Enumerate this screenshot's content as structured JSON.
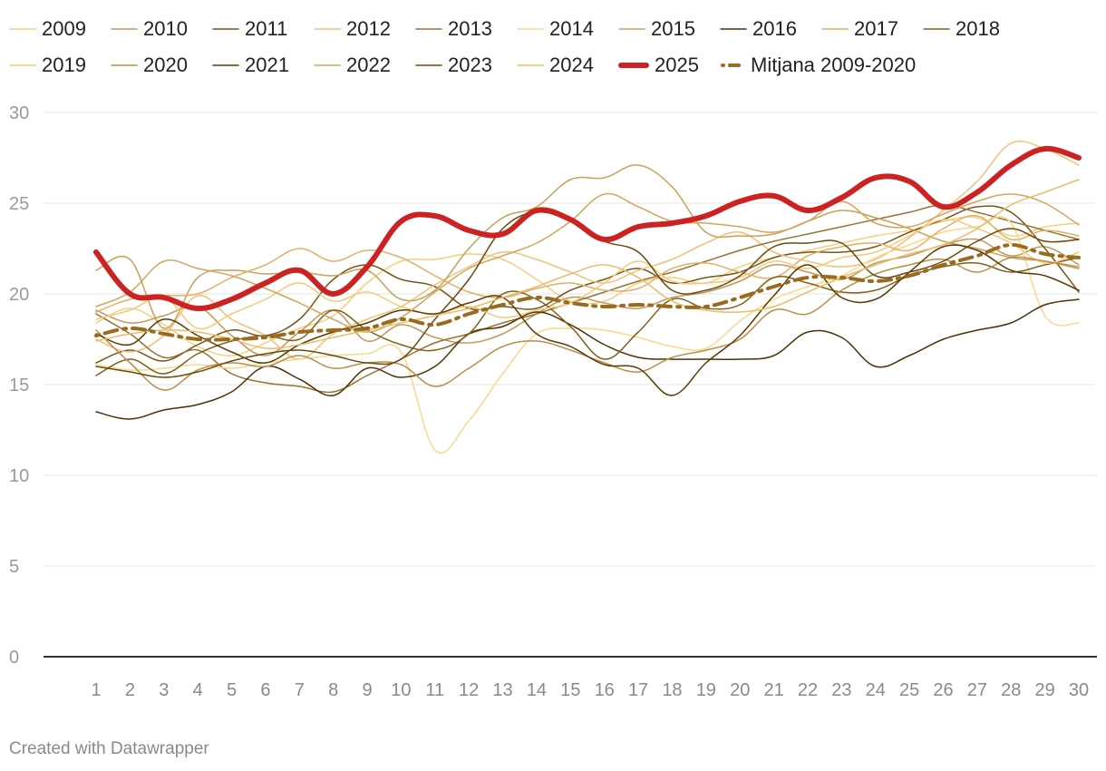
{
  "chart_data": {
    "type": "line",
    "title": "",
    "xlabel": "",
    "ylabel": "",
    "ylim": [
      0,
      30
    ],
    "yticks": [
      0,
      5,
      10,
      15,
      20,
      25,
      30
    ],
    "x": [
      1,
      2,
      3,
      4,
      5,
      6,
      7,
      8,
      9,
      10,
      11,
      12,
      13,
      14,
      15,
      16,
      17,
      18,
      19,
      20,
      21,
      22,
      23,
      24,
      25,
      26,
      27,
      28,
      29,
      30
    ],
    "series": [
      {
        "name": "2009",
        "color": "#f6cf7e",
        "width": 1.5,
        "values": [
          18.4,
          19.2,
          18.3,
          17.1,
          16.6,
          17.3,
          18.1,
          18.8,
          20.6,
          21.8,
          21.9,
          22.2,
          21.9,
          20.8,
          19.6,
          19.6,
          20.6,
          20.9,
          20.6,
          21.5,
          22.0,
          22.4,
          22.8,
          23.2,
          23.5,
          24.0,
          24.2,
          23.2,
          23.7,
          23.9
        ]
      },
      {
        "name": "2010",
        "color": "#c4975a",
        "width": 1.5,
        "values": [
          19.1,
          18.4,
          18.8,
          19.3,
          17.7,
          16.6,
          17.9,
          19.1,
          17.4,
          18.3,
          17.6,
          17.3,
          17.8,
          18.9,
          19.8,
          19.5,
          19.2,
          19.8,
          20.1,
          20.7,
          21.6,
          21.2,
          20.8,
          21.7,
          22.1,
          22.7,
          23.0,
          22.1,
          22.6,
          21.6
        ]
      },
      {
        "name": "2011",
        "color": "#7a5518",
        "width": 1.5,
        "values": [
          16.2,
          16.9,
          16.3,
          17.2,
          18.0,
          17.7,
          18.6,
          20.8,
          21.6,
          20.8,
          20.4,
          19.2,
          19.3,
          19.2,
          20.2,
          20.8,
          21.4,
          20.6,
          20.9,
          21.2,
          22.0,
          22.3,
          22.3,
          22.6,
          23.4,
          24.1,
          24.8,
          24.5,
          22.5,
          20.1
        ]
      },
      {
        "name": "2012",
        "color": "#f1c17a",
        "width": 1.5,
        "values": [
          17.5,
          16.8,
          17.7,
          19.9,
          18.6,
          17.7,
          16.4,
          17.8,
          18.6,
          19.3,
          20.5,
          21.5,
          22.3,
          21.9,
          21.2,
          20.6,
          21.3,
          21.9,
          22.8,
          23.4,
          22.3,
          21.8,
          21.5,
          21.9,
          23.1,
          24.6,
          26.2,
          28.3,
          28.0,
          27.1
        ]
      },
      {
        "name": "2013",
        "color": "#9a7233",
        "width": 1.5,
        "values": [
          18.9,
          17.8,
          16.5,
          16.9,
          15.6,
          15.1,
          14.9,
          14.6,
          15.5,
          16.4,
          17.3,
          17.8,
          18.4,
          18.9,
          19.5,
          20.1,
          20.7,
          21.2,
          21.8,
          22.4,
          22.9,
          23.3,
          23.7,
          24.1,
          24.5,
          24.9,
          24.5,
          24.0,
          23.5,
          23.0
        ]
      },
      {
        "name": "2014",
        "color": "#fbd78f",
        "width": 1.5,
        "values": [
          16.1,
          15.8,
          15.9,
          16.1,
          15.9,
          16.2,
          16.4,
          16.6,
          16.7,
          16.8,
          11.4,
          13.0,
          15.6,
          17.8,
          18.1,
          18.0,
          17.6,
          17.1,
          17.0,
          18.5,
          19.7,
          20.4,
          21.0,
          22.0,
          22.7,
          23.4,
          23.7,
          23.9,
          18.8,
          18.4
        ]
      },
      {
        "name": "2015",
        "color": "#c9a056",
        "width": 1.5,
        "values": [
          21.3,
          21.9,
          18.1,
          20.9,
          21.3,
          21.1,
          21.2,
          21.0,
          21.3,
          19.7,
          20.2,
          22.5,
          24.2,
          24.8,
          26.3,
          26.4,
          27.1,
          25.9,
          23.4,
          23.2,
          23.3,
          24.0,
          24.6,
          24.2,
          23.6,
          22.9,
          22.5,
          22.0,
          21.8,
          21.5
        ]
      },
      {
        "name": "2016",
        "color": "#4d3205",
        "width": 1.5,
        "values": [
          13.5,
          13.1,
          13.6,
          13.9,
          14.6,
          16.0,
          15.3,
          14.4,
          15.9,
          15.4,
          16.0,
          17.8,
          18.2,
          19.0,
          18.3,
          17.2,
          16.5,
          16.4,
          16.4,
          16.4,
          16.6,
          17.9,
          17.6,
          16.0,
          16.6,
          17.5,
          18.0,
          18.4,
          19.4,
          19.7
        ]
      },
      {
        "name": "2017",
        "color": "#e2b063",
        "width": 1.5,
        "values": [
          19.0,
          19.7,
          19.9,
          20.0,
          20.9,
          21.6,
          22.5,
          21.8,
          22.4,
          22.0,
          21.0,
          20.1,
          19.8,
          20.3,
          20.6,
          20.2,
          20.3,
          21.4,
          21.7,
          21.2,
          20.9,
          22.1,
          22.6,
          22.8,
          22.4,
          23.6,
          24.3,
          23.0,
          23.5,
          23.2
        ]
      },
      {
        "name": "2018",
        "color": "#80601a",
        "width": 1.5,
        "values": [
          15.5,
          16.4,
          15.6,
          16.7,
          17.4,
          17.7,
          17.5,
          19.1,
          18.0,
          17.2,
          16.9,
          17.8,
          20.0,
          19.7,
          18.2,
          16.4,
          17.9,
          19.7,
          19.2,
          19.4,
          20.9,
          20.6,
          20.1,
          20.2,
          21.0,
          21.5,
          21.7,
          21.2,
          21.6,
          22.0
        ]
      },
      {
        "name": "2019",
        "color": "#f5c978",
        "width": 1.5,
        "values": [
          18.6,
          19.1,
          19.8,
          18.1,
          18.9,
          19.7,
          20.6,
          19.6,
          20.1,
          19.3,
          18.9,
          19.3,
          18.7,
          19.1,
          19.5,
          20.6,
          21.8,
          20.7,
          20.6,
          20.9,
          21.8,
          21.4,
          22.0,
          22.3,
          23.2,
          24.1,
          23.6,
          22.8,
          21.7,
          22.3
        ]
      },
      {
        "name": "2020",
        "color": "#b98f47",
        "width": 1.5,
        "values": [
          18.0,
          16.2,
          14.7,
          15.8,
          16.2,
          16.0,
          16.6,
          15.9,
          16.2,
          16.1,
          14.9,
          15.9,
          17.1,
          17.4,
          16.9,
          16.2,
          15.7,
          16.5,
          16.9,
          17.5,
          19.1,
          18.9,
          20.2,
          21.1,
          21.6,
          21.9,
          21.2,
          22.0,
          21.8,
          21.4
        ]
      },
      {
        "name": "2021",
        "color": "#5a3a05",
        "width": 1.5,
        "values": [
          17.8,
          17.2,
          18.6,
          17.7,
          16.8,
          16.2,
          17.2,
          17.9,
          18.4,
          19.1,
          18.9,
          19.5,
          19.8,
          17.8,
          17.1,
          16.1,
          15.9,
          14.4,
          16.2,
          17.7,
          19.9,
          21.6,
          19.8,
          19.7,
          21.2,
          22.6,
          22.4,
          21.3,
          21.0,
          20.2
        ]
      },
      {
        "name": "2022",
        "color": "#d0a55e",
        "width": 1.5,
        "values": [
          19.3,
          20.1,
          21.8,
          21.4,
          21.0,
          20.3,
          19.5,
          18.6,
          17.9,
          18.7,
          20.1,
          21.4,
          22.1,
          22.8,
          24.0,
          25.5,
          24.8,
          24.0,
          23.9,
          23.7,
          23.4,
          24.0,
          25.1,
          23.9,
          23.7,
          24.4,
          25.1,
          25.5,
          25.0,
          23.8
        ]
      },
      {
        "name": "2023",
        "color": "#6b4a0c",
        "width": 1.5,
        "values": [
          16.0,
          15.7,
          15.4,
          15.7,
          16.3,
          16.7,
          16.9,
          16.6,
          16.2,
          16.4,
          18.6,
          20.8,
          23.6,
          24.5,
          24.0,
          22.9,
          22.3,
          20.2,
          20.2,
          21.0,
          22.6,
          22.8,
          22.8,
          21.0,
          21.2,
          21.8,
          22.9,
          23.6,
          22.9,
          23.0
        ]
      },
      {
        "name": "2024",
        "color": "#e8bd6c",
        "width": 1.5,
        "values": [
          17.4,
          17.8,
          18.0,
          17.9,
          17.5,
          17.0,
          17.2,
          17.6,
          18.0,
          18.4,
          18.8,
          19.2,
          19.8,
          20.4,
          21.1,
          21.6,
          20.9,
          19.6,
          19.1,
          19.0,
          19.3,
          20.1,
          20.9,
          21.6,
          22.2,
          22.7,
          23.6,
          24.9,
          25.6,
          26.3
        ]
      },
      {
        "name": "2025",
        "color": "#cc2222",
        "width": 6,
        "values": [
          22.3,
          20.0,
          19.8,
          19.2,
          19.7,
          20.6,
          21.3,
          20.0,
          21.5,
          24.0,
          24.3,
          23.5,
          23.3,
          24.6,
          24.1,
          23.0,
          23.7,
          23.9,
          24.3,
          25.1,
          25.4,
          24.6,
          25.3,
          26.4,
          26.2,
          24.8,
          25.6,
          27.1,
          28.0,
          27.5
        ]
      },
      {
        "name": "Mitjana 2009-2020",
        "color": "#9a6b1c",
        "width": 4,
        "dash": "3 7 14 7",
        "values": [
          17.7,
          18.1,
          17.8,
          17.5,
          17.5,
          17.6,
          17.9,
          18.0,
          18.1,
          18.6,
          18.3,
          18.9,
          19.4,
          19.8,
          19.5,
          19.3,
          19.4,
          19.3,
          19.3,
          19.8,
          20.4,
          20.9,
          20.9,
          20.7,
          21.0,
          21.6,
          22.1,
          22.7,
          22.2,
          22.0
        ]
      }
    ]
  },
  "credit": "Created with Datawrapper"
}
